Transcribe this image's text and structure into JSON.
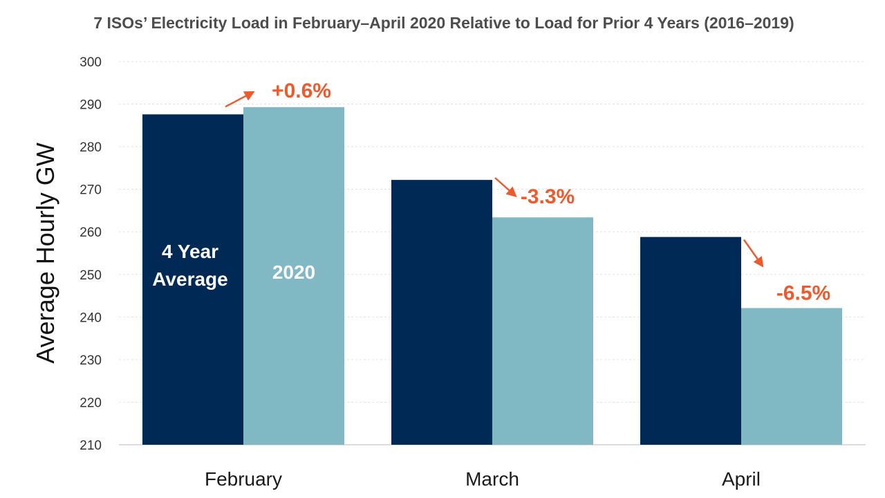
{
  "chart_data": {
    "type": "bar",
    "title": "7 ISOs’ Electricity Load in February–April 2020 Relative to Load for Prior 4 Years (2016–2019)",
    "ylabel": "Average Hourly GW",
    "xlabel": "",
    "ylim": [
      210,
      300
    ],
    "yticks": [
      300,
      290,
      280,
      270,
      260,
      250,
      240,
      230,
      220,
      210
    ],
    "categories": [
      "February",
      "March",
      "April"
    ],
    "series": [
      {
        "name": "4 Year Average",
        "label_lines": [
          "4 Year",
          "Average"
        ],
        "color": "#002a55",
        "values": [
          287.6,
          272.2,
          258.8
        ]
      },
      {
        "name": "2020",
        "label_lines": [
          "2020"
        ],
        "color": "#80b8c4",
        "values": [
          289.3,
          263.4,
          242.1
        ]
      }
    ],
    "annotations": [
      "+0.6%",
      "-3.3%",
      "-6.5%"
    ],
    "annotation_color": "#ef5a2d",
    "grid": true,
    "legend": "inside-first-bars"
  }
}
